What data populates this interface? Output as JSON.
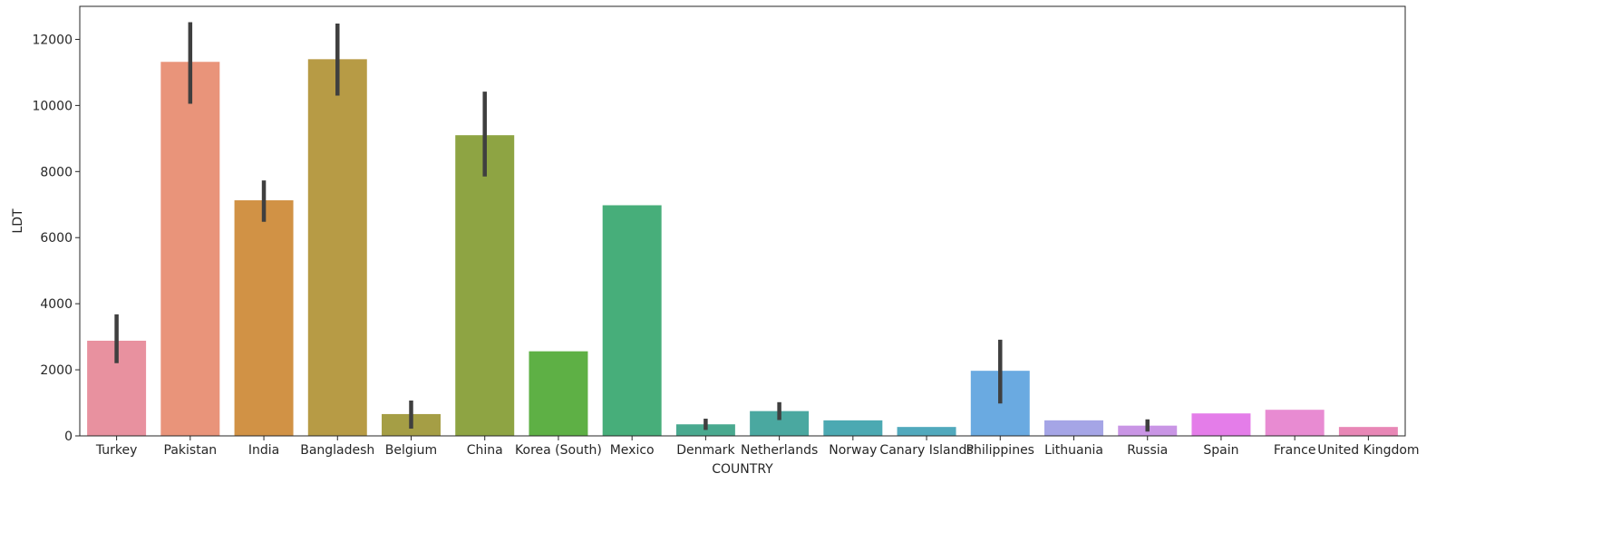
{
  "chart_data": {
    "type": "bar",
    "title": "",
    "xlabel": "COUNTRY",
    "ylabel": "LDT",
    "ylim": [
      0,
      13000
    ],
    "yticks": [
      0,
      2000,
      4000,
      6000,
      8000,
      10000,
      12000
    ],
    "grid": false,
    "categories": [
      "Turkey",
      "Pakistan",
      "India",
      "Bangladesh",
      "Belgium",
      "China",
      "Korea (South)",
      "Mexico",
      "Denmark",
      "Netherlands",
      "Norway",
      "Canary Islands",
      "Philippines",
      "Lithuania",
      "Russia",
      "Spain",
      "France",
      "United Kingdom"
    ],
    "values": [
      2880,
      11320,
      7130,
      11400,
      660,
      9100,
      2560,
      6980,
      350,
      750,
      470,
      270,
      1970,
      470,
      310,
      680,
      790,
      270
    ],
    "error_low": [
      2200,
      10050,
      6480,
      10300,
      220,
      7850,
      null,
      null,
      180,
      480,
      null,
      null,
      980,
      null,
      130,
      null,
      null,
      null
    ],
    "error_high": [
      3680,
      12520,
      7730,
      12480,
      1070,
      10420,
      null,
      null,
      520,
      1020,
      null,
      null,
      2910,
      null,
      500,
      null,
      null,
      null
    ],
    "colors": [
      "#e8919f",
      "#e9947a",
      "#d19245",
      "#b79b45",
      "#a59e45",
      "#8ea443",
      "#5eb045",
      "#47ae7a",
      "#49a98f",
      "#4aa8a0",
      "#4ca9b2",
      "#51a9bd",
      "#6aaae1",
      "#a5a5e6",
      "#c995e5",
      "#e47de9",
      "#e88bd2",
      "#e887b6"
    ]
  }
}
